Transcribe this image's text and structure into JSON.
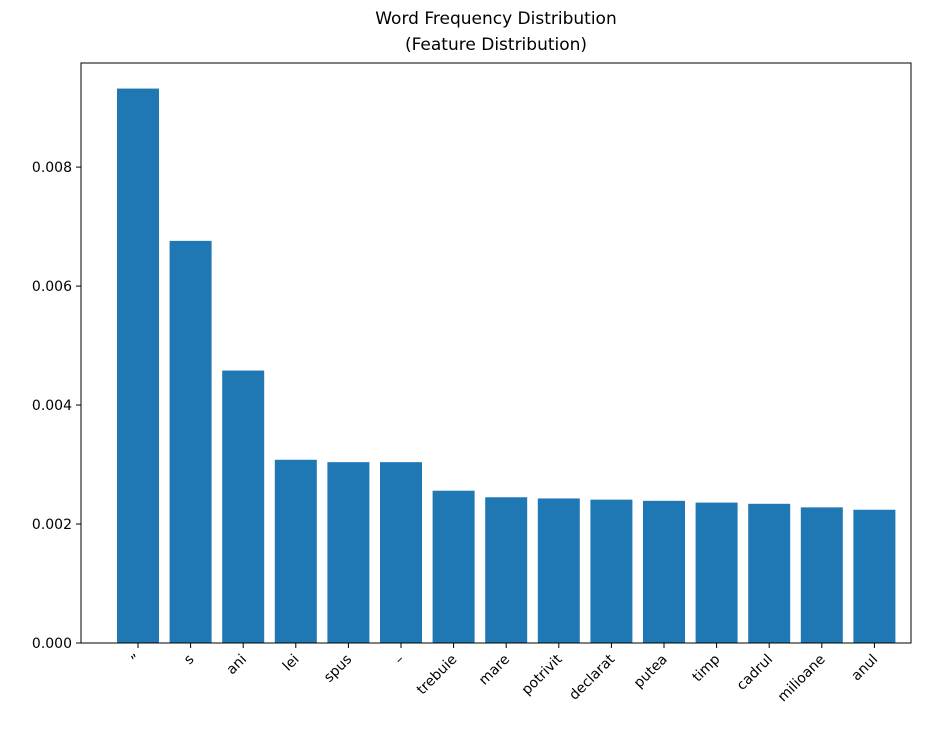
{
  "chart_data": {
    "type": "bar",
    "title": "Word Frequency Distribution",
    "subtitle": "(Feature Distribution)",
    "xlabel": "",
    "ylabel": "",
    "categories": [
      "”",
      "s",
      "ani",
      "lei",
      "spus",
      "–",
      "trebuie",
      "mare",
      "potrivit",
      "declarat",
      "putea",
      "timp",
      "cadrul",
      "milioane",
      "anul"
    ],
    "values": [
      0.00932,
      0.00676,
      0.00458,
      0.00308,
      0.00304,
      0.00304,
      0.00256,
      0.00245,
      0.00243,
      0.00241,
      0.00239,
      0.00236,
      0.00234,
      0.00228,
      0.00224
    ],
    "ylim": [
      0,
      0.00975
    ],
    "yticks": [
      0.0,
      0.002,
      0.004,
      0.006,
      0.008
    ],
    "ytick_labels": [
      "0.000",
      "0.002",
      "0.004",
      "0.006",
      "0.008"
    ],
    "grid": false,
    "bar_color": "#1f77b4"
  }
}
